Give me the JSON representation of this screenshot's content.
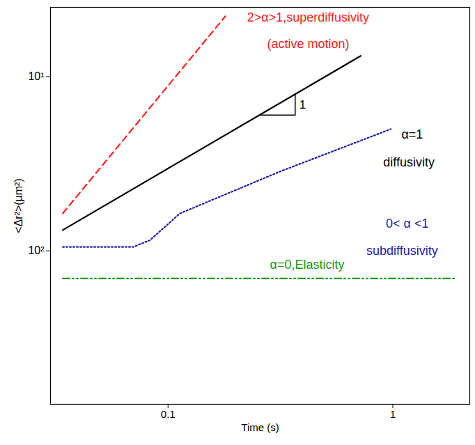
{
  "chart_data": {
    "type": "line",
    "log": true,
    "grid": false,
    "x_label": "Time (s)",
    "y_label": "<Δr²>(µm²)",
    "xlim": [
      0.03,
      2.2
    ],
    "xticks": [
      0.1,
      1
    ],
    "ylim": [
      760,
      4
    ],
    "yticks": [
      {
        "value": 10,
        "label": "10¹"
      },
      {
        "value": 100,
        "label": "10²"
      }
    ],
    "series": [
      {
        "color": "#ff2020",
        "line_style": "dashed",
        "x": [
          0.034,
          0.18
        ],
        "values": [
          61,
          4.5
        ]
      },
      {
        "color": "#000000",
        "line_style": "solid",
        "x": [
          0.034,
          0.72
        ],
        "values": [
          76,
          7.6
        ]
      },
      {
        "color": "#1c1ca8",
        "line_style": "dotted",
        "x": [
          0.034,
          0.07,
          0.083,
          0.113,
          0.316,
          0.98
        ],
        "values": [
          95,
          95,
          87,
          61,
          35,
          20
        ]
      },
      {
        "color": "#159a15",
        "line_style": "dashdotdot",
        "x": [
          0.034,
          1.88
        ],
        "values": [
          144,
          144
        ]
      }
    ],
    "slope_label": "1",
    "annotations": [
      {
        "text": "2>α>1,superdiffusivity",
        "x": 0.42,
        "y": 4.6,
        "color": "#ff2020"
      },
      {
        "text": "(active motion)",
        "x": 0.42,
        "y": 6.5,
        "color": "#ff2020"
      },
      {
        "text": "α=1",
        "x": 1.22,
        "y": 21.5,
        "color": "#000000"
      },
      {
        "text": "diffusivity",
        "x": 1.18,
        "y": 31,
        "color": "#000000"
      },
      {
        "text": "0< α <1",
        "x": 1.16,
        "y": 70,
        "color": "#1c1ca8"
      },
      {
        "text": "subdiffusivity",
        "x": 1.1,
        "y": 100,
        "color": "#1c1ca8"
      },
      {
        "text": "α=0,Elasticity",
        "x": 0.416,
        "y": 120,
        "color": "#159a15"
      }
    ]
  }
}
